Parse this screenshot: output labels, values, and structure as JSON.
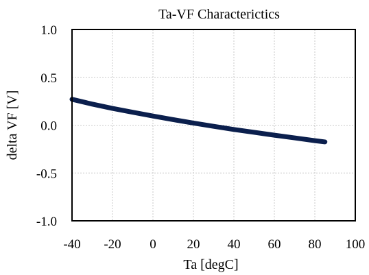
{
  "chart_data": {
    "type": "line",
    "title": "Ta-VF Characterictics",
    "xlabel": "Ta [degC]",
    "ylabel": "delta VF [V]",
    "xlim": [
      -40,
      100
    ],
    "ylim": [
      -1.0,
      1.0
    ],
    "x_ticks": [
      -40,
      -20,
      0,
      20,
      40,
      60,
      80,
      100
    ],
    "y_ticks": [
      -1.0,
      -0.5,
      0.0,
      0.5,
      1.0
    ],
    "x_tick_labels": [
      "-40",
      "-20",
      "0",
      "20",
      "40",
      "60",
      "80",
      "100"
    ],
    "y_tick_labels": [
      "-1.0",
      "-0.5",
      "0.0",
      "0.5",
      "1.0"
    ],
    "grid": true,
    "series": [
      {
        "color": "#0b1f4d",
        "x": [
          -40,
          -30,
          -20,
          -10,
          0,
          10,
          20,
          30,
          40,
          50,
          60,
          70,
          80,
          85
        ],
        "y": [
          0.27,
          0.22,
          0.175,
          0.135,
          0.095,
          0.058,
          0.022,
          -0.012,
          -0.045,
          -0.075,
          -0.105,
          -0.133,
          -0.162,
          -0.175
        ]
      }
    ]
  }
}
